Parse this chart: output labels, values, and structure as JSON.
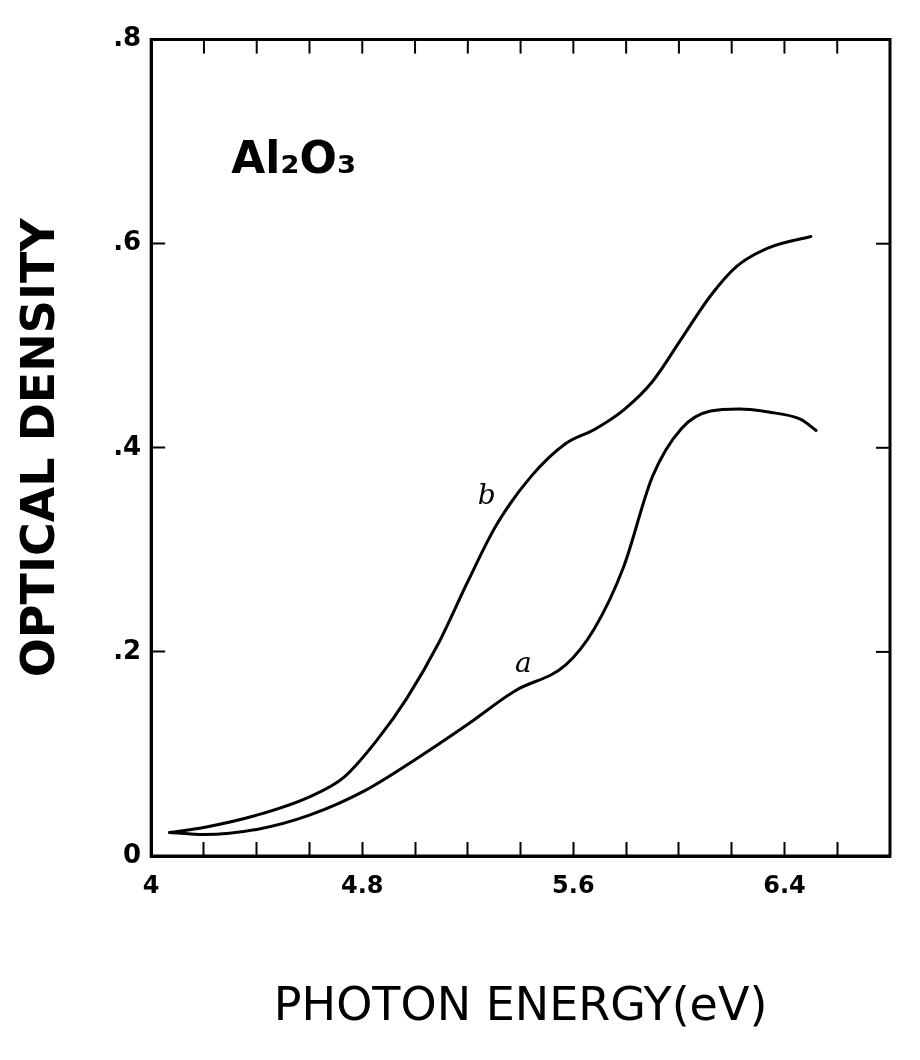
{
  "chart_data": {
    "type": "line",
    "xlabel": "PHOTON ENERGY(eV)",
    "ylabel": "OPTICAL DENSITY",
    "annotations": [
      "Al₂O₃"
    ],
    "xlim": [
      4,
      6.8
    ],
    "ylim": [
      0,
      0.8
    ],
    "xticks": [
      4,
      {
        "value": 4.2,
        "label": null
      },
      {
        "value": 4.4,
        "label": null
      },
      {
        "value": 4.6,
        "label": null
      },
      4.8,
      {
        "value": 5,
        "label": null
      },
      {
        "value": 5.2,
        "label": null
      },
      {
        "value": 5.4,
        "label": null
      },
      5.6,
      {
        "value": 5.8,
        "label": null
      },
      {
        "value": 6,
        "label": null
      },
      {
        "value": 6.2,
        "label": null
      },
      6.4,
      {
        "value": 6.6,
        "label": null
      }
    ],
    "yticks": [
      {
        "value": 0,
        "label": "0"
      },
      {
        "value": 0.2,
        "label": ".2"
      },
      {
        "value": 0.4,
        "label": ".4"
      },
      {
        "value": 0.6,
        "label": ".6"
      },
      {
        "value": 0.8,
        "label": ".8"
      }
    ],
    "grid": false,
    "legend": false,
    "marker": "none",
    "line_style": "solid",
    "series": [
      {
        "name": "a",
        "color": "#000000",
        "x": [
          4.07,
          4.2,
          4.4,
          4.6,
          4.81,
          5.01,
          5.2,
          5.38,
          5.57,
          5.68,
          5.79,
          5.9,
          6.01,
          6.12,
          6.23,
          6.34,
          6.46,
          6.52
        ],
        "values": [
          0.023,
          0.021,
          0.026,
          0.04,
          0.064,
          0.096,
          0.129,
          0.162,
          0.187,
          0.223,
          0.283,
          0.372,
          0.419,
          0.436,
          0.438,
          0.435,
          0.428,
          0.417
        ]
      },
      {
        "name": "b",
        "color": "#000000",
        "x": [
          4.07,
          4.2,
          4.4,
          4.6,
          4.73,
          4.86,
          4.97,
          5.09,
          5.2,
          5.31,
          5.44,
          5.57,
          5.68,
          5.79,
          5.9,
          6.01,
          6.12,
          6.22,
          6.34,
          6.5
        ],
        "values": [
          0.023,
          0.028,
          0.04,
          0.058,
          0.077,
          0.115,
          0.155,
          0.209,
          0.269,
          0.325,
          0.372,
          0.404,
          0.418,
          0.437,
          0.465,
          0.507,
          0.549,
          0.578,
          0.596,
          0.607
        ]
      }
    ]
  }
}
